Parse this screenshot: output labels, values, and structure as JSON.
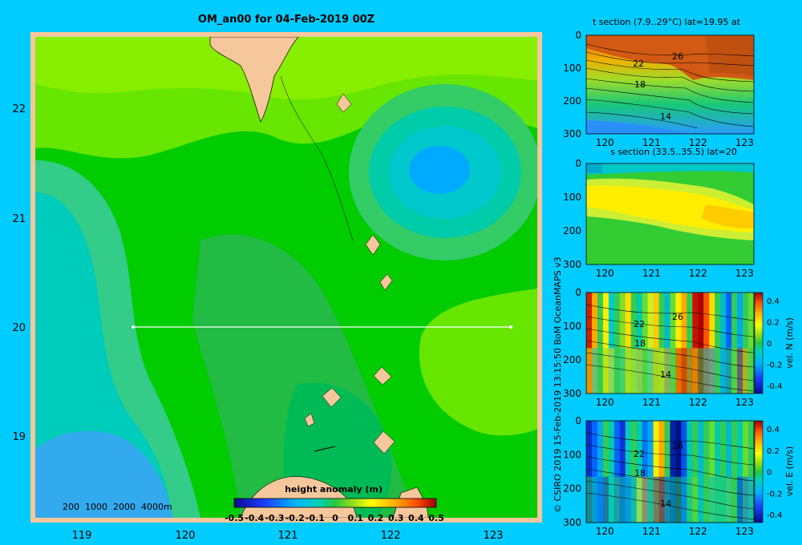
{
  "colors": {
    "background": "#00ccff",
    "land": "#f7c79c",
    "frame": "#f7c79c"
  },
  "map": {
    "title": "OM_an00 for 04-Feb-2019 00Z",
    "xticks": [
      "119",
      "120",
      "121",
      "122",
      "123"
    ],
    "yticks": [
      "22",
      "21",
      "20",
      "19"
    ],
    "bathy_legend": "200  1000  2000  4000m",
    "colorbar": {
      "title": "height anomaly (m)",
      "labels": [
        "-0.5",
        "-0.4",
        "-0.3",
        "-0.2",
        "-0.1",
        "0",
        "0.1",
        "0.2",
        "0.3",
        "0.4",
        "0.5"
      ]
    },
    "section_line": {
      "lon_start": 119.5,
      "lon_end": 123.2,
      "lat": 20.0
    }
  },
  "side_text": "© CSIRO 2019  15-Feb-2019 13:15:50 BoM OceanMAPS v3",
  "chart_data": [
    {
      "type": "heatmap",
      "title": "OM_an00 for 04-Feb-2019 00Z",
      "variable": "height anomaly (m)",
      "xlim": [
        118.5,
        123.5
      ],
      "ylim": [
        18.3,
        22.7
      ],
      "clim": [
        -0.5,
        0.5
      ],
      "xticks": [
        119,
        120,
        121,
        122,
        123
      ],
      "yticks": [
        19,
        20,
        21,
        22
      ]
    },
    {
      "type": "heatmap",
      "title": "t section (7.9..29°C) lat=19.95 at",
      "xticks": [
        "120",
        "121",
        "122",
        "123"
      ],
      "yticks": [
        "0",
        "100",
        "200",
        "300"
      ],
      "contour_labels": [
        "22",
        "26",
        "18",
        "14"
      ]
    },
    {
      "type": "heatmap",
      "title": "s section (33.5..35.5) lat=20",
      "xticks": [
        "120",
        "121",
        "122",
        "123"
      ],
      "yticks": [
        "0",
        "100",
        "200",
        "300"
      ]
    },
    {
      "type": "heatmap",
      "title": "",
      "colorbar_label": "vel. N (m/s)",
      "colorbar_ticks": [
        "0.4",
        "0.2",
        "0",
        "-0.2",
        "-0.4"
      ],
      "xticks": [
        "120",
        "121",
        "122",
        "123"
      ],
      "yticks": [
        "0",
        "100",
        "200",
        "300"
      ],
      "contour_labels": [
        "26",
        "22",
        "18",
        "14"
      ]
    },
    {
      "type": "heatmap",
      "title": "",
      "colorbar_label": "vel. E (m/s)",
      "colorbar_ticks": [
        "0.4",
        "0.2",
        "0",
        "-0.2",
        "-0.4"
      ],
      "xticks": [
        "120",
        "121",
        "122",
        "123"
      ],
      "yticks": [
        "0",
        "100",
        "200",
        "300"
      ],
      "contour_labels": [
        "26",
        "22",
        "18",
        "14"
      ]
    }
  ]
}
